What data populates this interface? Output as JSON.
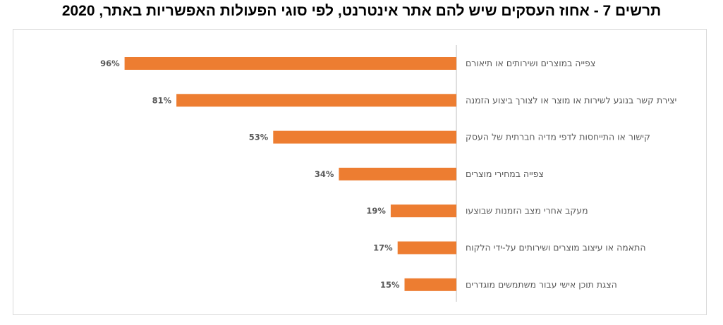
{
  "chart_data": {
    "type": "bar",
    "orientation": "horizontal",
    "title": "תרשים 7 - אחוז העסקים שיש להם אתר אינטרנט, לפי סוגי הפעולות האפשריות באתר, 2020",
    "categories": [
      "צפייה במוצרים ושירותים או תיאורם",
      "יצירת קשר בנוגע לשירות או מוצר או לצורך ביצוע הזמנה",
      "קישור או התייחסות לדפי מדיה חברתית של העסק",
      "צפייה במחירי מוצרים",
      "מעקב אחרי מצב הזמנות שבוצעו",
      "התאמה או עיצוב מוצרים ושירותים על-ידי הלקוח",
      "הצגת תוכן אישי  עבור משתמשים מוגדרים"
    ],
    "values": [
      96,
      81,
      53,
      34,
      19,
      17,
      15
    ],
    "value_labels": [
      "96%",
      "81%",
      "53%",
      "34%",
      "19%",
      "17%",
      "15%"
    ],
    "bar_direction": "right-to-left",
    "xlim": [
      0,
      100
    ],
    "grid": false,
    "legend": "none",
    "colors": {
      "bar": "#ED7D31",
      "axis": "#BFBFBF",
      "frame": "#D9D9D9",
      "label": "#595959",
      "title": "#000000"
    }
  }
}
